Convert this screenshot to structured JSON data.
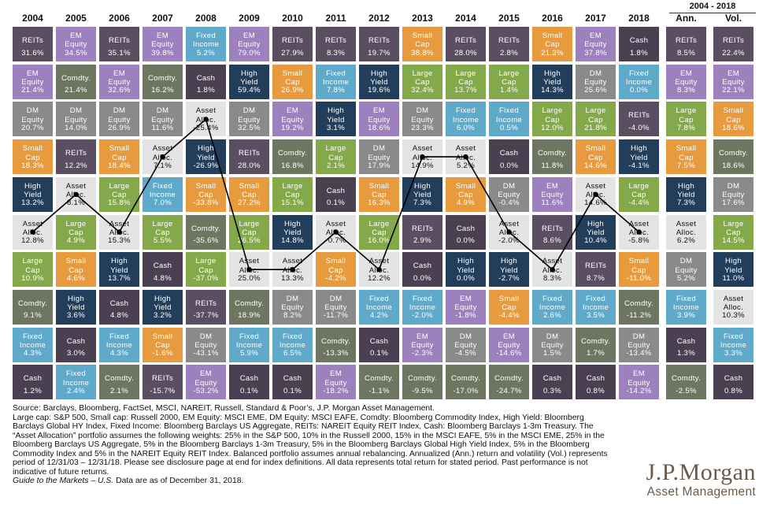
{
  "colors": {
    "REITs": "#5b4e63",
    "EM Equity": "#9c81be",
    "Fixed Income": "#5fa9cb",
    "Cash": "#4b3f52",
    "High Yield": "#233e5b",
    "Small Cap": "#e79b3e",
    "DM Equity": "#8a8a8a",
    "Comdty.": "#6e7561",
    "Asset Alloc.": "#e4e4e4",
    "Large Cap": "#84a94a"
  },
  "chart_data": {
    "type": "table",
    "title": "",
    "summary_header": "2004 - 2018",
    "columns": [
      "2004",
      "2005",
      "2006",
      "2007",
      "2008",
      "2009",
      "2010",
      "2011",
      "2012",
      "2013",
      "2014",
      "2015",
      "2016",
      "2017",
      "2018",
      "Ann.",
      "Vol."
    ],
    "cells": [
      [
        [
          "REITs",
          "31.6%"
        ],
        [
          "EM Equity",
          "21.4%"
        ],
        [
          "DM Equity",
          "20.7%"
        ],
        [
          "Small Cap",
          "18.3%"
        ],
        [
          "High Yield",
          "13.2%"
        ],
        [
          "Asset Alloc.",
          "12.8%"
        ],
        [
          "Large Cap",
          "10.9%"
        ],
        [
          "Comdty.",
          "9.1%"
        ],
        [
          "Fixed Income",
          "4.3%"
        ],
        [
          "Cash",
          "1.2%"
        ]
      ],
      [
        [
          "EM Equity",
          "34.5%"
        ],
        [
          "Comdty.",
          "21.4%"
        ],
        [
          "DM Equity",
          "14.0%"
        ],
        [
          "REITs",
          "12.2%"
        ],
        [
          "Asset Alloc.",
          "8.1%"
        ],
        [
          "Large Cap",
          "4.9%"
        ],
        [
          "Small Cap",
          "4.6%"
        ],
        [
          "High Yield",
          "3.6%"
        ],
        [
          "Cash",
          "3.0%"
        ],
        [
          "Fixed Income",
          "2.4%"
        ]
      ],
      [
        [
          "REITs",
          "35.1%"
        ],
        [
          "EM Equity",
          "32.6%"
        ],
        [
          "DM Equity",
          "26.9%"
        ],
        [
          "Small Cap",
          "18.4%"
        ],
        [
          "Large Cap",
          "15.8%"
        ],
        [
          "Asset Alloc.",
          "15.3%"
        ],
        [
          "High Yield",
          "13.7%"
        ],
        [
          "Cash",
          "4.8%"
        ],
        [
          "Fixed Income",
          "4.3%"
        ],
        [
          "Comdty.",
          "2.1%"
        ]
      ],
      [
        [
          "EM Equity",
          "39.8%"
        ],
        [
          "Comdty.",
          "16.2%"
        ],
        [
          "DM Equity",
          "11.6%"
        ],
        [
          "Asset Alloc.",
          "7.1%"
        ],
        [
          "Fixed Income",
          "7.0%"
        ],
        [
          "Large Cap",
          "5.5%"
        ],
        [
          "Cash",
          "4.8%"
        ],
        [
          "High Yield",
          "3.2%"
        ],
        [
          "Small Cap",
          "-1.6%"
        ],
        [
          "REITs",
          "-15.7%"
        ]
      ],
      [
        [
          "Fixed Income",
          "5.2%"
        ],
        [
          "Cash",
          "1.8%"
        ],
        [
          "Asset Alloc.",
          "-25.4%"
        ],
        [
          "High Yield",
          "-26.9%"
        ],
        [
          "Small Cap",
          "-33.8%"
        ],
        [
          "Comdty.",
          "-35.6%"
        ],
        [
          "Large Cap",
          "-37.0%"
        ],
        [
          "REITs",
          "-37.7%"
        ],
        [
          "DM Equity",
          "-43.1%"
        ],
        [
          "EM Equity",
          "-53.2%"
        ]
      ],
      [
        [
          "EM Equity",
          "79.0%"
        ],
        [
          "High Yield",
          "59.4%"
        ],
        [
          "DM Equity",
          "32.5%"
        ],
        [
          "REITs",
          "28.0%"
        ],
        [
          "Small Cap",
          "27.2%"
        ],
        [
          "Large Cap",
          "26.5%"
        ],
        [
          "Asset Alloc.",
          "25.0%"
        ],
        [
          "Comdty.",
          "18.9%"
        ],
        [
          "Fixed Income",
          "5.9%"
        ],
        [
          "Cash",
          "0.1%"
        ]
      ],
      [
        [
          "REITs",
          "27.9%"
        ],
        [
          "Small Cap",
          "26.9%"
        ],
        [
          "EM Equity",
          "19.2%"
        ],
        [
          "Comdty.",
          "16.8%"
        ],
        [
          "Large Cap",
          "15.1%"
        ],
        [
          "High Yield",
          "14.8%"
        ],
        [
          "Asset Alloc.",
          "13.3%"
        ],
        [
          "DM Equity",
          "8.2%"
        ],
        [
          "Fixed Income",
          "6.5%"
        ],
        [
          "Cash",
          "0.1%"
        ]
      ],
      [
        [
          "REITs",
          "8.3%"
        ],
        [
          "Fixed Income",
          "7.8%"
        ],
        [
          "High Yield",
          "3.1%"
        ],
        [
          "Large Cap",
          "2.1%"
        ],
        [
          "Cash",
          "0.1%"
        ],
        [
          "Asset Alloc.",
          "-0.7%"
        ],
        [
          "Small Cap",
          "-4.2%"
        ],
        [
          "DM Equity",
          "-11.7%"
        ],
        [
          "Comdty.",
          "-13.3%"
        ],
        [
          "EM Equity",
          "-18.2%"
        ]
      ],
      [
        [
          "REITs",
          "19.7%"
        ],
        [
          "High Yield",
          "19.6%"
        ],
        [
          "EM Equity",
          "18.6%"
        ],
        [
          "DM Equity",
          "17.9%"
        ],
        [
          "Small Cap",
          "16.3%"
        ],
        [
          "Large Cap",
          "16.0%"
        ],
        [
          "Asset Alloc.",
          "12.2%"
        ],
        [
          "Fixed Income",
          "4.2%"
        ],
        [
          "Cash",
          "0.1%"
        ],
        [
          "Comdty.",
          "-1.1%"
        ]
      ],
      [
        [
          "Small Cap",
          "38.8%"
        ],
        [
          "Large Cap",
          "32.4%"
        ],
        [
          "DM Equity",
          "23.3%"
        ],
        [
          "Asset Alloc.",
          "14.9%"
        ],
        [
          "High Yield",
          "7.3%"
        ],
        [
          "REITs",
          "2.9%"
        ],
        [
          "Cash",
          "0.0%"
        ],
        [
          "Fixed Income",
          "-2.0%"
        ],
        [
          "EM Equity",
          "-2.3%"
        ],
        [
          "Comdty.",
          "-9.5%"
        ]
      ],
      [
        [
          "REITs",
          "28.0%"
        ],
        [
          "Large Cap",
          "13.7%"
        ],
        [
          "Fixed Income",
          "6.0%"
        ],
        [
          "Asset Alloc.",
          "5.2%"
        ],
        [
          "Small Cap",
          "4.9%"
        ],
        [
          "Cash",
          "0.0%"
        ],
        [
          "High Yield",
          "0.0%"
        ],
        [
          "EM Equity",
          "-1.8%"
        ],
        [
          "DM Equity",
          "-4.5%"
        ],
        [
          "Comdty.",
          "-17.0%"
        ]
      ],
      [
        [
          "REITs",
          "2.8%"
        ],
        [
          "Large Cap",
          "1.4%"
        ],
        [
          "Fixed Income",
          "0.5%"
        ],
        [
          "Cash",
          "0.0%"
        ],
        [
          "DM Equity",
          "-0.4%"
        ],
        [
          "Asset Alloc.",
          "-2.0%"
        ],
        [
          "High Yield",
          "-2.7%"
        ],
        [
          "Small Cap",
          "-4.4%"
        ],
        [
          "EM Equity",
          "-14.6%"
        ],
        [
          "Comdty.",
          "-24.7%"
        ]
      ],
      [
        [
          "Small Cap",
          "21.3%"
        ],
        [
          "High Yield",
          "14.3%"
        ],
        [
          "Large Cap",
          "12.0%"
        ],
        [
          "Comdty.",
          "11.8%"
        ],
        [
          "EM Equity",
          "11.6%"
        ],
        [
          "REITs",
          "8.6%"
        ],
        [
          "Asset Alloc.",
          "8.3%"
        ],
        [
          "Fixed Income",
          "2.6%"
        ],
        [
          "DM Equity",
          "1.5%"
        ],
        [
          "Cash",
          "0.3%"
        ]
      ],
      [
        [
          "EM Equity",
          "37.8%"
        ],
        [
          "DM Equity",
          "25.6%"
        ],
        [
          "Large Cap",
          "21.8%"
        ],
        [
          "Small Cap",
          "14.6%"
        ],
        [
          "Asset Alloc.",
          "14.6%"
        ],
        [
          "High Yield",
          "10.4%"
        ],
        [
          "REITs",
          "8.7%"
        ],
        [
          "Fixed Income",
          "3.5%"
        ],
        [
          "Comdty.",
          "1.7%"
        ],
        [
          "Cash",
          "0.8%"
        ]
      ],
      [
        [
          "Cash",
          "1.8%"
        ],
        [
          "Fixed Income",
          "0.0%"
        ],
        [
          "REITs",
          "-4.0%"
        ],
        [
          "High Yield",
          "-4.1%"
        ],
        [
          "Large Cap",
          "-4.4%"
        ],
        [
          "Asset Alloc.",
          "-5.8%"
        ],
        [
          "Small Cap",
          "-11.0%"
        ],
        [
          "Comdty.",
          "-11.2%"
        ],
        [
          "DM Equity",
          "-13.4%"
        ],
        [
          "EM Equity",
          "-14.2%"
        ]
      ],
      [
        [
          "REITs",
          "8.5%"
        ],
        [
          "EM Equity",
          "8.3%"
        ],
        [
          "Large Cap",
          "7.8%"
        ],
        [
          "Small Cap",
          "7.5%"
        ],
        [
          "High Yield",
          "7.3%"
        ],
        [
          "Asset Alloc.",
          "6.2%"
        ],
        [
          "DM Equity",
          "5.2%"
        ],
        [
          "Fixed Income",
          "3.9%"
        ],
        [
          "Cash",
          "1.3%"
        ],
        [
          "Comdty.",
          "-2.5%"
        ]
      ],
      [
        [
          "REITs",
          "22.4%"
        ],
        [
          "EM Equity",
          "22.1%"
        ],
        [
          "Small Cap",
          "18.6%"
        ],
        [
          "Comdty.",
          "18.6%"
        ],
        [
          "DM Equity",
          "17.6%"
        ],
        [
          "Large Cap",
          "14.5%"
        ],
        [
          "High Yield",
          "11.0%"
        ],
        [
          "Asset Alloc.",
          "10.3%"
        ],
        [
          "Fixed Income",
          "3.3%"
        ],
        [
          "Cash",
          "0.8%"
        ]
      ]
    ],
    "highlight_series": "Asset Alloc."
  },
  "footnote": {
    "line1": "Source: Barclays, Bloomberg, FactSet, MSCI, NAREIT, Russell, Standard & Poor’s, J.P. Morgan Asset Management.",
    "body": "Large cap: S&P 500, Small cap: Russell 2000, EM Equity: MSCI EME, DM Equity: MSCI EAFE, Comdty: Bloomberg Commodity Index, High Yield: Bloomberg Barclays Global HY Index, Fixed Income: Bloomberg Barclays US Aggregate, REITs: NAREIT Equity REIT Index, Cash: Bloomberg Barclays 1-3m Treasury. The “Asset Allocation” portfolio assumes the following weights: 25% in the S&P 500, 10% in the Russell 2000, 15% in the MSCI EAFE, 5% in the MSCI EME, 25% in the Bloomberg Barclays US Aggregate, 5% in the Bloomberg Barclays 1-3m Treasury, 5% in the Bloomberg Barclays Global High Yield Index, 5% in the Bloomberg Commodity Index and 5% in the NAREIT Equity REIT Index. Balanced portfolio assumes annual rebalancing. Annualized (Ann.) return and volatility (Vol.) represents period of 12/31/03 – 12/31/18. Please see disclosure page at end for index definitions. All data represents total return for stated period. Past performance is not indicative of future returns.",
    "italic": "Guide to the Markets – U.S.",
    "tail": " Data are as of December 31, 2018."
  },
  "logo": {
    "brand": "J.P.Morgan",
    "subtitle": "Asset Management"
  }
}
